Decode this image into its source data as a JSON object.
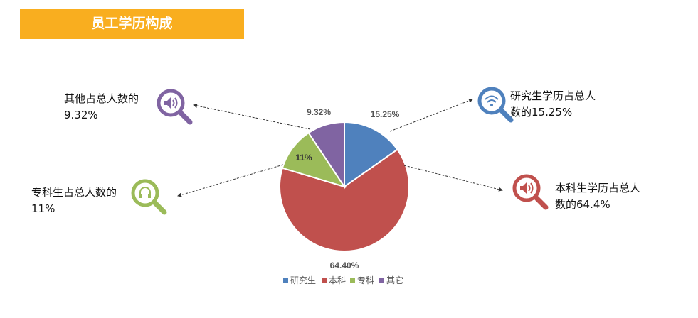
{
  "title": "员工学历构成",
  "chart_data": {
    "type": "pie",
    "start": "top, clockwise",
    "slices": [
      {
        "name": "研究生",
        "value": 15.25,
        "label": "15.25%",
        "color": "#4F81BD"
      },
      {
        "name": "本科",
        "value": 64.4,
        "label": "64.40%",
        "color": "#C0504D"
      },
      {
        "name": "专科",
        "value": 11,
        "label": "11%",
        "color": "#9BBB59"
      },
      {
        "name": "其它",
        "value": 9.32,
        "label": "9.32%",
        "color": "#8064A2"
      }
    ],
    "legend_position": "bottom"
  },
  "callouts": [
    {
      "line1": "其他占总人数的",
      "line2": "9.32%",
      "icon": "search-speaker-icon",
      "color": "#8064A2"
    },
    {
      "line1": "专科生占总人数的",
      "line2": "11%",
      "icon": "search-headphones-icon",
      "color": "#9BBB59"
    },
    {
      "line1": "研究生学历占总人",
      "line2": "数的15.25%",
      "icon": "search-wifi-icon",
      "color": "#4F81BD"
    },
    {
      "line1": "本科生学历占总人",
      "line2": "数的64.4%",
      "icon": "search-volume-icon",
      "color": "#C0504D"
    }
  ]
}
